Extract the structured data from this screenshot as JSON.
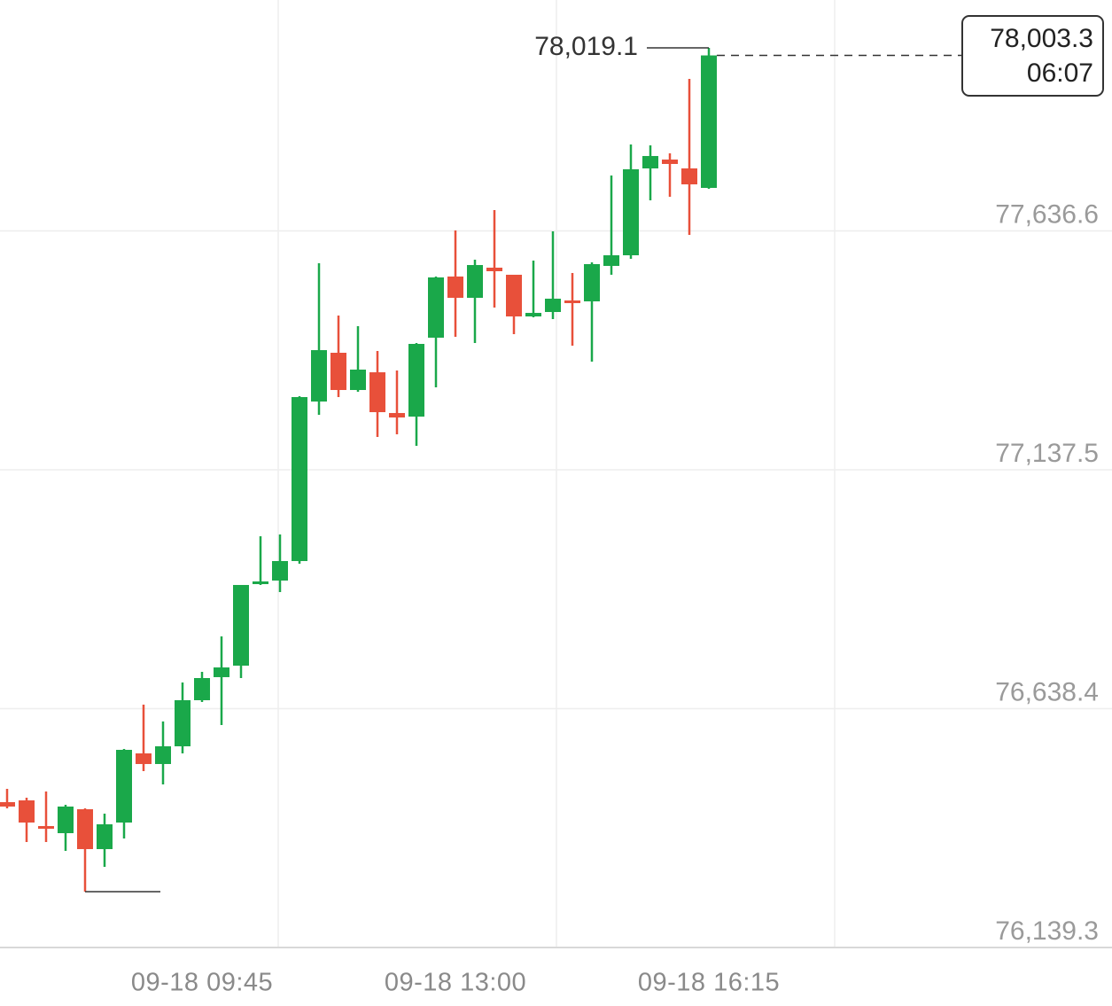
{
  "chart_data": {
    "type": "candlestick",
    "categories": [
      null,
      null,
      null,
      null,
      null,
      null,
      null,
      null,
      null,
      null,
      "09-18 09:45",
      null,
      null,
      null,
      null,
      null,
      null,
      null,
      null,
      null,
      null,
      null,
      null,
      "09-18 13:00",
      null,
      null,
      null,
      null,
      null,
      null,
      null,
      null,
      null,
      null,
      null,
      null,
      "09-18 16:15"
    ],
    "open": [
      76443.0,
      76446.7,
      76393.0,
      76378.2,
      76428.2,
      76344.9,
      76400.4,
      76544.9,
      76522.7,
      76559.7,
      76656.0,
      76704.2,
      76728.2,
      76898.6,
      76906.0,
      76946.8,
      77280.1,
      77382.0,
      77304.2,
      77341.2,
      77256.1,
      77248.6,
      77413.5,
      77541.3,
      77496.8,
      77559.8,
      77545.0,
      77457.9,
      77467.2,
      77491.3,
      77489.4,
      77563.5,
      77585.7,
      77767.2,
      77785.7,
      77767.2,
      77726.5
    ],
    "high": [
      76470.8,
      76452.3,
      76465.3,
      76437.5,
      76430.1,
      76419.0,
      76554.1,
      76646.7,
      76611.6,
      76693.0,
      76715.3,
      76789.4,
      76896.8,
      76998.6,
      77002.3,
      77291.2,
      77569.0,
      77459.8,
      77437.6,
      77385.7,
      77345.0,
      77402.4,
      77541.3,
      77637.6,
      77576.5,
      77680.2,
      77545.0,
      77574.6,
      77635.7,
      77548.7,
      77570.9,
      77752.4,
      77817.2,
      77815.4,
      77798.7,
      77954.3,
      78019.1
    ],
    "low": [
      76430.1,
      76359.7,
      76359.7,
      76341.2,
      76256.0,
      76307.8,
      76367.1,
      76507.8,
      76480.1,
      76544.9,
      76652.3,
      76604.2,
      76702.3,
      76896.8,
      76882.0,
      76941.2,
      77252.4,
      77289.4,
      77300.5,
      77206.1,
      77211.6,
      77187.5,
      77309.8,
      77415.3,
      77402.4,
      77476.4,
      77420.9,
      77456.1,
      77452.4,
      77396.8,
      77363.5,
      77545.0,
      77578.3,
      77700.5,
      77707.9,
      77628.3,
      77724.6
    ],
    "close": [
      76433.8,
      76400.4,
      76387.5,
      76433.8,
      76344.9,
      76396.7,
      76552.3,
      76522.7,
      76559.7,
      76656.0,
      76702.3,
      76724.5,
      76896.8,
      76904.2,
      76946.8,
      77289.4,
      77387.5,
      77304.2,
      77346.8,
      77257.9,
      77246.8,
      77400.5,
      77539.4,
      77496.8,
      77565.3,
      77552.4,
      77457.9,
      77465.3,
      77495.0,
      77487.6,
      77567.2,
      77585.7,
      77765.4,
      77793.1,
      77776.5,
      77733.9,
      78003.3
    ],
    "up_color": "#1aa84a",
    "down_color": "#e8503a",
    "ylim": [
      76139.3,
      78119.1
    ],
    "yticks": [
      {
        "value": 76139.3,
        "label": "76,139.3"
      },
      {
        "value": 76638.4,
        "label": "76,638.4"
      },
      {
        "value": 77137.5,
        "label": "77,137.5"
      },
      {
        "value": 77636.6,
        "label": "77,636.6"
      }
    ],
    "grid": true,
    "high_label": {
      "value": 78019.1,
      "label": "78,019.1"
    },
    "last_price": {
      "value": 78003.3,
      "label": "78,003.3"
    },
    "countdown": "06:07"
  }
}
